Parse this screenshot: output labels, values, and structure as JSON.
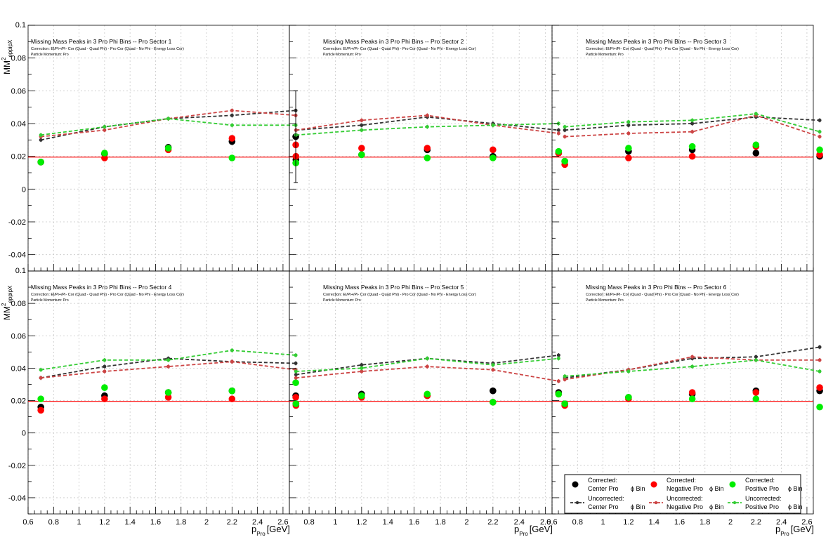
{
  "colors": {
    "center_marker": "#000000",
    "negative_marker": "#ff0000",
    "positive_marker": "#00ee00",
    "center_line": "#333333",
    "negative_line": "#cc4444",
    "positive_line": "#33cc33",
    "reference_line": "#ff0000",
    "grid": "#c8c8c8"
  },
  "ylabel_main": "MM",
  "ylabel_sup": "2",
  "ylabel_sub": "eppipX",
  "xlabel_main": "p",
  "xlabel_sub": "Pro",
  "xlabel_unit": "[GeV]",
  "correction_text": "Correction: El/Pi+/Pi- Cor (Quad - Quad Phi) - Pro Cor (Quad - No Phi - Energy Loss Cor)",
  "momentum_text": "Particle Momentum: Pro",
  "legend": [
    {
      "title": "Corrected:",
      "label": "Center Pro",
      "suffix": "ϕ Bin",
      "kind": "marker",
      "color": "#000000"
    },
    {
      "title": "Corrected:",
      "label": "Negative Pro",
      "suffix": "ϕ Bin",
      "kind": "marker",
      "color": "#ff0000"
    },
    {
      "title": "Corrected:",
      "label": "Positive Pro",
      "suffix": "ϕ Bin",
      "kind": "marker",
      "color": "#00ee00"
    },
    {
      "title": "Uncorrected:",
      "label": "Center Pro",
      "suffix": "ϕ Bin",
      "kind": "line",
      "color": "#333333"
    },
    {
      "title": "Uncorrected:",
      "label": "Negative Pro",
      "suffix": "ϕ Bin",
      "kind": "line",
      "color": "#cc4444"
    },
    {
      "title": "Uncorrected:",
      "label": "Positive Pro",
      "suffix": "ϕ Bin",
      "kind": "line",
      "color": "#33cc33"
    }
  ],
  "chart_data": [
    {
      "type": "scatter",
      "title": "Missing Mass Peaks in 3 Pro Phi Bins -- Pro Sector 1",
      "x": [
        0.7,
        1.2,
        1.7,
        2.2,
        2.7
      ],
      "xlim": [
        0.6,
        2.65
      ],
      "ylim": [
        -0.05,
        0.1
      ],
      "reference_y": 0.0195,
      "series": [
        {
          "name": "Corrected: Center Pro ϕ Bin",
          "values": [
            0.0165,
            0.0215,
            0.0255,
            0.029,
            0.032
          ]
        },
        {
          "name": "Corrected: Negative Pro ϕ Bin",
          "values": [
            0.0165,
            0.019,
            0.024,
            0.031,
            0.027
          ]
        },
        {
          "name": "Corrected: Positive Pro ϕ Bin",
          "values": [
            0.0165,
            0.022,
            0.025,
            0.019,
            0.016
          ]
        },
        {
          "name": "Uncorrected: Center Pro ϕ Bin",
          "values": [
            0.03,
            0.038,
            0.043,
            0.045,
            0.048
          ]
        },
        {
          "name": "Uncorrected: Negative Pro ϕ Bin",
          "values": [
            0.032,
            0.036,
            0.043,
            0.048,
            0.045
          ]
        },
        {
          "name": "Uncorrected: Positive Pro ϕ Bin",
          "values": [
            0.033,
            0.038,
            0.043,
            0.039,
            0.039
          ]
        }
      ]
    },
    {
      "type": "scatter",
      "title": "Missing Mass Peaks in 3 Pro Phi Bins -- Pro Sector 2",
      "x": [
        0.7,
        1.2,
        1.7,
        2.2,
        2.7
      ],
      "xlim": [
        0.65,
        2.65
      ],
      "ylim": [
        -0.05,
        0.1
      ],
      "reference_y": 0.0195,
      "series": [
        {
          "name": "Corrected: Center Pro ϕ Bin",
          "values": [
            0.018,
            0.021,
            0.024,
            0.02,
            0.022
          ]
        },
        {
          "name": "Corrected: Negative Pro ϕ Bin",
          "values": [
            0.02,
            0.025,
            0.025,
            0.024,
            0.022
          ]
        },
        {
          "name": "Corrected: Positive Pro ϕ Bin",
          "values": [
            0.016,
            0.021,
            0.019,
            0.019,
            0.023
          ]
        },
        {
          "name": "Uncorrected: Center Pro ϕ Bin",
          "values": [
            0.036,
            0.039,
            0.044,
            0.04,
            0.036
          ]
        },
        {
          "name": "Uncorrected: Negative Pro ϕ Bin",
          "values": [
            0.036,
            0.042,
            0.045,
            0.039,
            0.034
          ]
        },
        {
          "name": "Uncorrected: Positive Pro ϕ Bin",
          "values": [
            0.033,
            0.036,
            0.038,
            0.039,
            0.04
          ]
        }
      ]
    },
    {
      "type": "scatter",
      "title": "Missing Mass Peaks in 3 Pro Phi Bins -- Pro Sector 3",
      "x": [
        0.7,
        1.2,
        1.7,
        2.2,
        2.7
      ],
      "xlim": [
        0.6,
        2.65
      ],
      "ylim": [
        -0.05,
        0.1
      ],
      "reference_y": 0.0195,
      "series": [
        {
          "name": "Corrected: Center Pro ϕ Bin",
          "values": [
            0.017,
            0.023,
            0.024,
            0.022,
            0.02
          ]
        },
        {
          "name": "Corrected: Negative Pro ϕ Bin",
          "values": [
            0.015,
            0.019,
            0.02,
            0.026,
            0.021
          ]
        },
        {
          "name": "Corrected: Positive Pro ϕ Bin",
          "values": [
            0.017,
            0.025,
            0.026,
            0.027,
            0.024
          ]
        },
        {
          "name": "Uncorrected: Center Pro ϕ Bin",
          "values": [
            0.036,
            0.039,
            0.04,
            0.044,
            0.042
          ]
        },
        {
          "name": "Uncorrected: Negative Pro ϕ Bin",
          "values": [
            0.032,
            0.034,
            0.035,
            0.045,
            0.032
          ]
        },
        {
          "name": "Uncorrected: Positive Pro ϕ Bin",
          "values": [
            0.038,
            0.041,
            0.042,
            0.046,
            0.035
          ]
        }
      ]
    },
    {
      "type": "scatter",
      "title": "Missing Mass Peaks in 3 Pro Phi Bins -- Pro Sector 4",
      "x": [
        0.7,
        1.2,
        1.7,
        2.2,
        2.7
      ],
      "xlim": [
        0.6,
        2.65
      ],
      "ylim": [
        -0.05,
        0.1
      ],
      "reference_y": 0.0195,
      "series": [
        {
          "name": "Corrected: Center Pro ϕ Bin",
          "values": [
            0.016,
            0.023,
            0.025,
            0.026,
            0.023
          ]
        },
        {
          "name": "Corrected: Negative Pro ϕ Bin",
          "values": [
            0.014,
            0.021,
            0.022,
            0.021,
            0.022
          ]
        },
        {
          "name": "Corrected: Positive Pro ϕ Bin",
          "values": [
            0.021,
            0.028,
            0.025,
            0.026,
            0.031
          ]
        },
        {
          "name": "Uncorrected: Center Pro ϕ Bin",
          "values": [
            0.034,
            0.041,
            0.046,
            0.044,
            0.043
          ]
        },
        {
          "name": "Uncorrected: Negative Pro ϕ Bin",
          "values": [
            0.034,
            0.038,
            0.041,
            0.044,
            0.039
          ]
        },
        {
          "name": "Uncorrected: Positive Pro ϕ Bin",
          "values": [
            0.039,
            0.045,
            0.045,
            0.051,
            0.048
          ]
        }
      ]
    },
    {
      "type": "scatter",
      "title": "Missing Mass Peaks in 3 Pro Phi Bins -- Pro Sector 5",
      "x": [
        0.7,
        1.2,
        1.7,
        2.2,
        2.7
      ],
      "xlim": [
        0.65,
        2.65
      ],
      "ylim": [
        -0.05,
        0.1
      ],
      "reference_y": 0.0195,
      "series": [
        {
          "name": "Corrected: Center Pro ϕ Bin",
          "values": [
            0.018,
            0.024,
            0.023,
            0.026,
            0.025
          ]
        },
        {
          "name": "Corrected: Negative Pro ϕ Bin",
          "values": [
            0.017,
            0.022,
            0.023,
            0.019,
            0.024
          ]
        },
        {
          "name": "Corrected: Positive Pro ϕ Bin",
          "values": [
            0.018,
            0.023,
            0.024,
            0.019,
            0.024
          ]
        },
        {
          "name": "Uncorrected: Center Pro ϕ Bin",
          "values": [
            0.036,
            0.042,
            0.046,
            0.043,
            0.048
          ]
        },
        {
          "name": "Uncorrected: Negative Pro ϕ Bin",
          "values": [
            0.034,
            0.038,
            0.041,
            0.039,
            0.032
          ]
        },
        {
          "name": "Uncorrected: Positive Pro ϕ Bin",
          "values": [
            0.038,
            0.04,
            0.046,
            0.042,
            0.046
          ]
        }
      ]
    },
    {
      "type": "scatter",
      "title": "Missing Mass Peaks in 3 Pro Phi Bins -- Pro Sector 6",
      "x": [
        0.7,
        1.2,
        1.7,
        2.2,
        2.7
      ],
      "xlim": [
        0.6,
        2.65
      ],
      "ylim": [
        -0.05,
        0.1
      ],
      "reference_y": 0.0195,
      "series": [
        {
          "name": "Corrected: Center Pro ϕ Bin",
          "values": [
            0.018,
            0.022,
            0.024,
            0.026,
            0.026
          ]
        },
        {
          "name": "Corrected: Negative Pro ϕ Bin",
          "values": [
            0.017,
            0.021,
            0.025,
            0.025,
            0.028
          ]
        },
        {
          "name": "Corrected: Positive Pro ϕ Bin",
          "values": [
            0.018,
            0.022,
            0.021,
            0.021,
            0.016
          ]
        },
        {
          "name": "Uncorrected: Center Pro ϕ Bin",
          "values": [
            0.034,
            0.039,
            0.046,
            0.047,
            0.053
          ]
        },
        {
          "name": "Uncorrected: Negative Pro ϕ Bin",
          "values": [
            0.033,
            0.039,
            0.047,
            0.045,
            0.045
          ]
        },
        {
          "name": "Uncorrected: Positive Pro ϕ Bin",
          "values": [
            0.035,
            0.038,
            0.041,
            0.045,
            0.038
          ]
        }
      ]
    }
  ]
}
